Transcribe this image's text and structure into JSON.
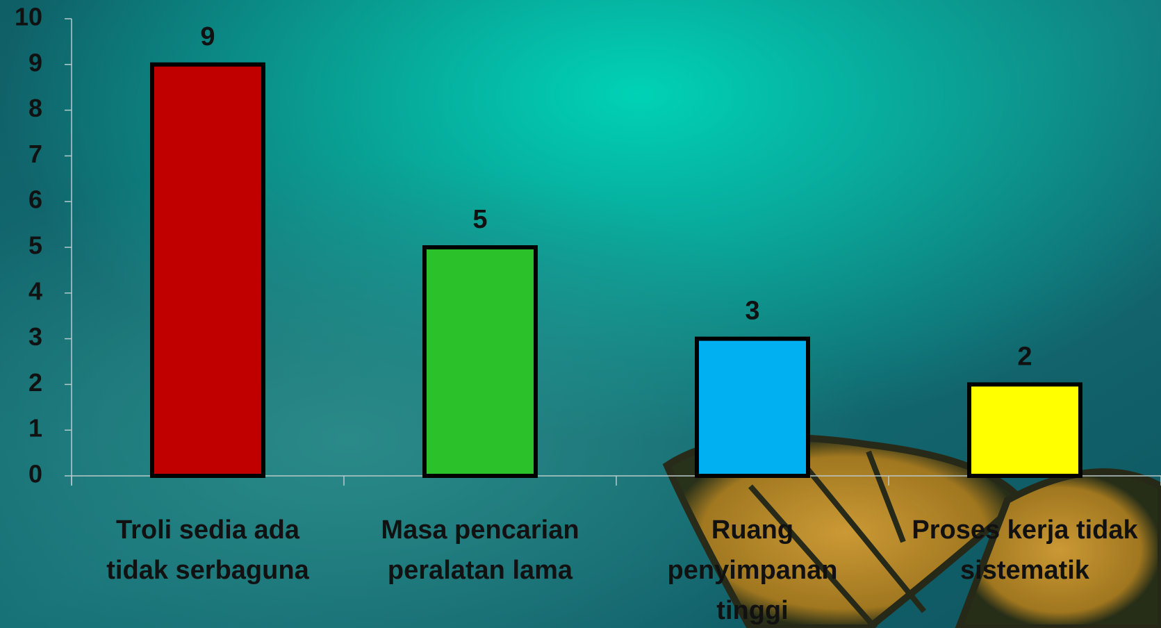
{
  "chart_data": {
    "type": "bar",
    "categories": [
      "Troli sedia ada tidak serbaguna",
      "Masa pencarian peralatan lama",
      "Ruang penyimpanan tinggi",
      "Proses kerja tidak sistematik"
    ],
    "values": [
      9,
      5,
      3,
      2
    ],
    "colors": [
      "#c00000",
      "#2ac12a",
      "#00b0f0",
      "#ffff00"
    ],
    "ylim": [
      0,
      10
    ],
    "yticks": [
      0,
      1,
      2,
      3,
      4,
      5,
      6,
      7,
      8,
      9,
      10
    ],
    "grid": false
  }
}
